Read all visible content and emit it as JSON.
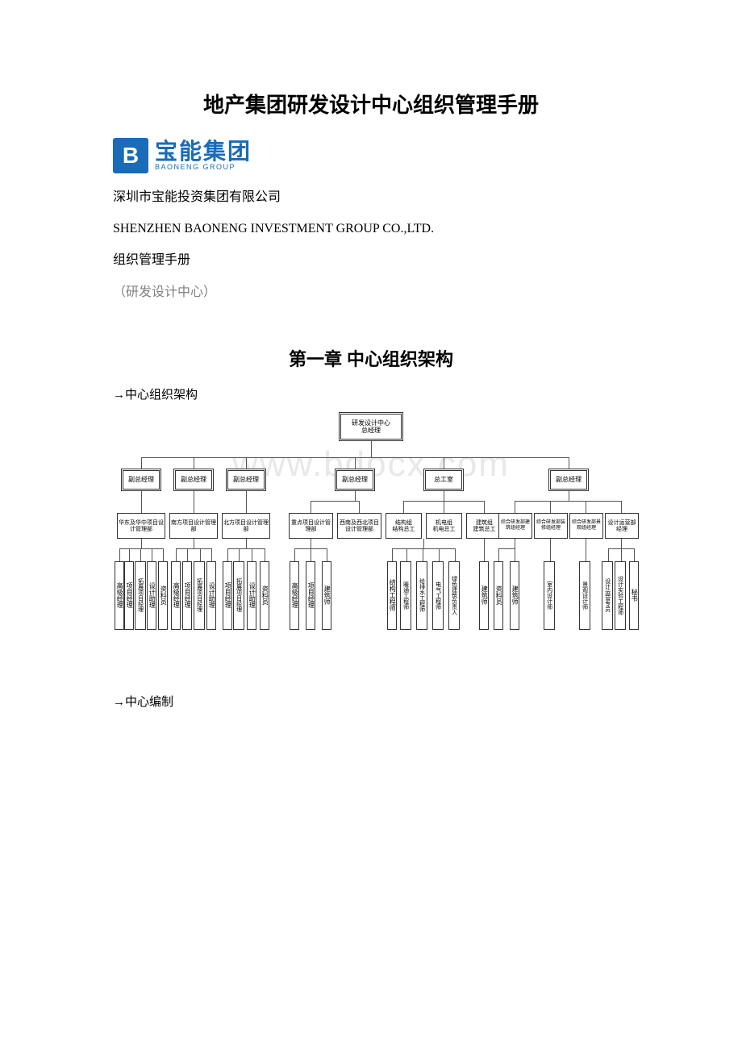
{
  "title": "地产集团研发设计中心组织管理手册",
  "logo": {
    "letter": "B",
    "cn": "宝能集团",
    "en": "BAONENG GROUP"
  },
  "company_cn": "深圳市宝能投资集团有限公司",
  "company_en": "SHENZHEN BAONENG INVESTMENT GROUP CO.,LTD.",
  "subtitle1": "组织管理手册",
  "subtitle2": "（研发设计中心）",
  "chapter": "第一章 中心组织架构",
  "section1": "中心组织架构",
  "section2": "中心编制",
  "watermark": "www.bdocx.com",
  "org": {
    "root": "研发设计中心\n总经理",
    "level2": [
      "副总经理",
      "副总经理",
      "副总经理",
      "副总经理",
      "总工室",
      "副总经理"
    ],
    "level3": [
      "华东及华中项目设计管理部",
      "南方项目设计管理部",
      "北方项目设计管理部",
      "重点项目设计管理部",
      "西南及西北项目设计管理部",
      "结构组\n结构总工",
      "机电组\n机电总工",
      "建筑组\n建筑总工",
      "综合研发部建筑组经理",
      "综合研发部装修组经理",
      "综合研发部景观组经理",
      "设计运营部\n经理"
    ],
    "level4_groups": [
      [
        "高级经理",
        "项目经理",
        "拓展项目经理",
        "设计助理",
        "资料员"
      ],
      [
        "高级经理",
        "项目经理",
        "拓展项目经理",
        "设计助理"
      ],
      [
        "项目经理",
        "拓展项目经理",
        "设计助理",
        "资料员"
      ],
      [
        "高级经理",
        "项目经理",
        "建筑师"
      ],
      [
        "结构工程师",
        "暖通工程师",
        "给排水工程师",
        "电气工程师",
        "绿色建筑负责人"
      ],
      [
        "建筑师",
        "资料员",
        "建筑师"
      ],
      [
        "室内设计师"
      ],
      [
        "景观设计师"
      ],
      [
        "设计运营专员",
        "设计实验工程师",
        "秘书"
      ]
    ]
  },
  "colors": {
    "text": "#000000",
    "brand": "#1a6bb8",
    "gray": "#808080",
    "box_border": "#333333",
    "line": "#555555",
    "watermark": "#e8e8e8",
    "bg": "#ffffff"
  }
}
